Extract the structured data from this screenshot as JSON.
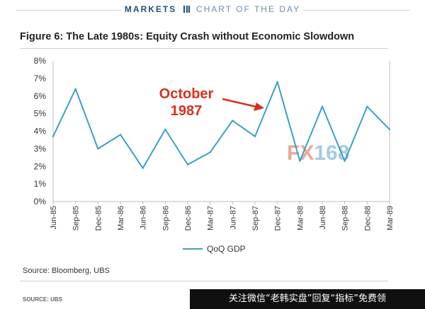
{
  "header": {
    "brand": "MARKETS",
    "subtitle": "CHART OF THE DAY"
  },
  "footer": {
    "source": "Source: Bloomberg, UBS",
    "source_small": "SOURCE: UBS",
    "banner": "关注微信“老韩实盘”回复“指标”免费领"
  },
  "watermark": {
    "text_a": "FX",
    "text_b": "168",
    "color_a": "#e8a08c",
    "color_b": "#9ec3e0"
  },
  "colors": {
    "line": "#3aa0c8",
    "annotation": "#d9301e",
    "axis": "#bdbdbd"
  },
  "chart_data": {
    "type": "line",
    "title": "Figure 6: The Late 1980s: Equity Crash without Economic Slowdown",
    "xlabel": "",
    "ylabel": "",
    "categories": [
      "Jun-85",
      "Sep-85",
      "Dec-85",
      "Mar-86",
      "Jun-86",
      "Sep-86",
      "Dec-86",
      "Mar-87",
      "Jun-87",
      "Sep-87",
      "Dec-87",
      "Mar-88",
      "Jun-88",
      "Sep-88",
      "Dec-88",
      "Mar-89"
    ],
    "ylim": [
      0,
      8
    ],
    "yticks": [
      "0%",
      "1%",
      "2%",
      "3%",
      "4%",
      "5%",
      "6%",
      "7%",
      "8%"
    ],
    "grid": false,
    "legend_position": "bottom-center",
    "series": [
      {
        "name": "QoQ GDP",
        "values": [
          3.7,
          6.4,
          3.0,
          3.8,
          1.9,
          4.1,
          2.1,
          2.8,
          4.6,
          3.7,
          6.8,
          2.3,
          5.4,
          2.3,
          5.4,
          4.1
        ]
      }
    ],
    "annotations": [
      {
        "lines": [
          "October",
          "1987"
        ]
      }
    ]
  }
}
